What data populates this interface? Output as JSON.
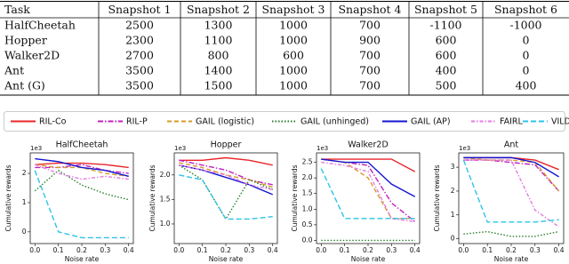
{
  "table": {
    "header": [
      "Task",
      "Snapshot 1",
      "Snapshot 2",
      "Snapshot 3",
      "Snapshot 4",
      "Snapshot 5",
      "Snapshot 6"
    ],
    "rows": [
      [
        "HalfCheetah",
        2500,
        1300,
        1000,
        700,
        -1100,
        -1000
      ],
      [
        "Hopper",
        2300,
        1100,
        1000,
        900,
        600,
        0
      ],
      [
        "Walker2D",
        2700,
        800,
        600,
        700,
        600,
        0
      ],
      [
        "Ant",
        3500,
        1400,
        1000,
        700,
        400,
        0
      ],
      [
        "Ant (G)",
        3500,
        1500,
        1000,
        700,
        500,
        400
      ]
    ]
  },
  "legend": [
    {
      "name": "RIL-Co",
      "color": "#e8262a",
      "dash": "none"
    },
    {
      "name": "RIL-P",
      "color": "#c020c0",
      "dash": "6,2,1.5,2"
    },
    {
      "name": "GAIL (logistic)",
      "color": "#d89a2a",
      "dash": "5,3"
    },
    {
      "name": "GAIL (unhinged)",
      "color": "#2a7d2a",
      "dash": "1.5,2"
    },
    {
      "name": "GAIL (AP)",
      "color": "#1515d0",
      "dash": "none"
    },
    {
      "name": "FAIRL",
      "color": "#e47ae4",
      "dash": "4,2,1.5,2"
    },
    {
      "name": "VILD",
      "color": "#2cc3e8",
      "dash": "6,3"
    }
  ],
  "chart_data": [
    {
      "type": "line",
      "title": "HalfCheetah",
      "y_label": "Cumulative rewards",
      "x_label": "Noise rate",
      "scale_label": "1e3",
      "x": [
        0,
        0.1,
        0.2,
        0.3,
        0.4
      ],
      "xlim": [
        -0.02,
        0.42
      ],
      "xticks": [
        {
          "value": 0,
          "label": "0.0"
        },
        {
          "value": 0.1,
          "label": "0.1"
        },
        {
          "value": 0.2,
          "label": "0.2"
        },
        {
          "value": 0.3,
          "label": "0.3"
        },
        {
          "value": 0.4,
          "label": "0.4"
        }
      ],
      "ylim": [
        -0.4,
        2.7
      ],
      "yticks": [
        0,
        1,
        2
      ],
      "series": [
        {
          "values": [
            2.3,
            2.35,
            2.35,
            2.3,
            2.2
          ]
        },
        {
          "values": [
            2.2,
            2.2,
            2.3,
            2.1,
            2.0
          ]
        },
        {
          "values": [
            2.3,
            2.2,
            2.2,
            2.0,
            1.9
          ]
        },
        {
          "values": [
            1.4,
            2.1,
            1.6,
            1.3,
            1.1
          ]
        },
        {
          "values": [
            2.5,
            2.4,
            2.2,
            2.1,
            1.9
          ]
        },
        {
          "values": [
            2.3,
            2.0,
            1.8,
            1.9,
            1.8
          ]
        },
        {
          "values": [
            2.1,
            0.0,
            -0.2,
            -0.2,
            -0.2
          ]
        }
      ]
    },
    {
      "type": "line",
      "title": "Hopper",
      "y_label": "Cumulative rewards",
      "x_label": "Noise rate",
      "scale_label": "1e3",
      "x": [
        0,
        0.1,
        0.2,
        0.3,
        0.4
      ],
      "xlim": [
        -0.02,
        0.42
      ],
      "xticks": [
        {
          "value": 0,
          "label": "0.0"
        },
        {
          "value": 0.1,
          "label": "0.1"
        },
        {
          "value": 0.2,
          "label": "0.2"
        },
        {
          "value": 0.3,
          "label": "0.3"
        },
        {
          "value": 0.4,
          "label": "0.4"
        }
      ],
      "ylim": [
        0.6,
        2.45
      ],
      "yticks": [
        {
          "value": 1,
          "label": "1.0"
        },
        {
          "value": 1.5,
          "label": "1.5"
        },
        {
          "value": 2,
          "label": "2.0"
        }
      ],
      "series": [
        {
          "values": [
            2.3,
            2.3,
            2.35,
            2.3,
            2.2
          ]
        },
        {
          "values": [
            2.3,
            2.2,
            2.1,
            1.9,
            1.8
          ]
        },
        {
          "values": [
            2.25,
            2.15,
            2.0,
            1.9,
            1.75
          ]
        },
        {
          "values": [
            2.2,
            1.9,
            1.1,
            1.9,
            1.7
          ]
        },
        {
          "values": [
            2.2,
            2.1,
            1.95,
            1.8,
            1.6
          ]
        },
        {
          "values": [
            2.2,
            2.1,
            2.0,
            1.8,
            1.7
          ]
        },
        {
          "values": [
            2.0,
            1.9,
            1.1,
            1.1,
            1.15
          ]
        }
      ]
    },
    {
      "type": "line",
      "title": "Walker2D",
      "y_label": "Cumulative rewards",
      "x_label": "Noise rate",
      "scale_label": "1e3",
      "x": [
        0,
        0.1,
        0.2,
        0.3,
        0.4
      ],
      "xlim": [
        -0.02,
        0.42
      ],
      "xticks": [
        {
          "value": 0,
          "label": "0.0"
        },
        {
          "value": 0.1,
          "label": "0.1"
        },
        {
          "value": 0.2,
          "label": "0.2"
        },
        {
          "value": 0.3,
          "label": "0.3"
        },
        {
          "value": 0.4,
          "label": "0.4"
        }
      ],
      "ylim": [
        -0.1,
        2.8
      ],
      "yticks": [
        {
          "value": 0,
          "label": "0.0"
        },
        {
          "value": 0.5,
          "label": "0.5"
        },
        {
          "value": 1,
          "label": "1.0"
        },
        {
          "value": 1.5,
          "label": "1.5"
        },
        {
          "value": 2,
          "label": "2.0"
        },
        {
          "value": 2.5,
          "label": "2.5"
        }
      ],
      "series": [
        {
          "values": [
            2.6,
            2.6,
            2.6,
            2.6,
            2.2
          ]
        },
        {
          "values": [
            2.6,
            2.5,
            2.4,
            1.2,
            0.6
          ]
        },
        {
          "values": [
            2.6,
            2.5,
            2.0,
            0.7,
            0.7
          ]
        },
        {
          "values": [
            0.0,
            0.0,
            0.0,
            0.0,
            0.0
          ]
        },
        {
          "values": [
            2.6,
            2.5,
            2.5,
            1.8,
            1.4
          ]
        },
        {
          "values": [
            2.5,
            2.4,
            2.2,
            0.7,
            0.6
          ]
        },
        {
          "values": [
            2.3,
            0.7,
            0.7,
            0.7,
            0.7
          ]
        }
      ]
    },
    {
      "type": "line",
      "title": "Ant",
      "y_label": "Cumulative rewards",
      "x_label": "Noise rate",
      "scale_label": "1e3",
      "x": [
        0,
        0.1,
        0.2,
        0.3,
        0.4
      ],
      "xlim": [
        -0.02,
        0.42
      ],
      "xticks": [
        {
          "value": 0,
          "label": "0.0"
        },
        {
          "value": 0.1,
          "label": "0.1"
        },
        {
          "value": 0.2,
          "label": "0.2"
        },
        {
          "value": 0.3,
          "label": "0.3"
        },
        {
          "value": 0.4,
          "label": "0.4"
        }
      ],
      "ylim": [
        -0.2,
        3.6
      ],
      "yticks": [
        0,
        1,
        2,
        3
      ],
      "series": [
        {
          "values": [
            3.4,
            3.4,
            3.4,
            3.3,
            2.9
          ]
        },
        {
          "values": [
            3.3,
            3.3,
            3.2,
            3.1,
            2.0
          ]
        },
        {
          "values": [
            3.4,
            3.3,
            3.3,
            3.2,
            2.0
          ]
        },
        {
          "values": [
            0.2,
            0.3,
            0.1,
            0.1,
            0.3
          ]
        },
        {
          "values": [
            3.4,
            3.4,
            3.4,
            3.2,
            2.6
          ]
        },
        {
          "values": [
            3.3,
            3.3,
            3.3,
            1.2,
            0.5
          ]
        },
        {
          "values": [
            3.3,
            0.7,
            0.7,
            0.7,
            0.8
          ]
        }
      ]
    }
  ]
}
